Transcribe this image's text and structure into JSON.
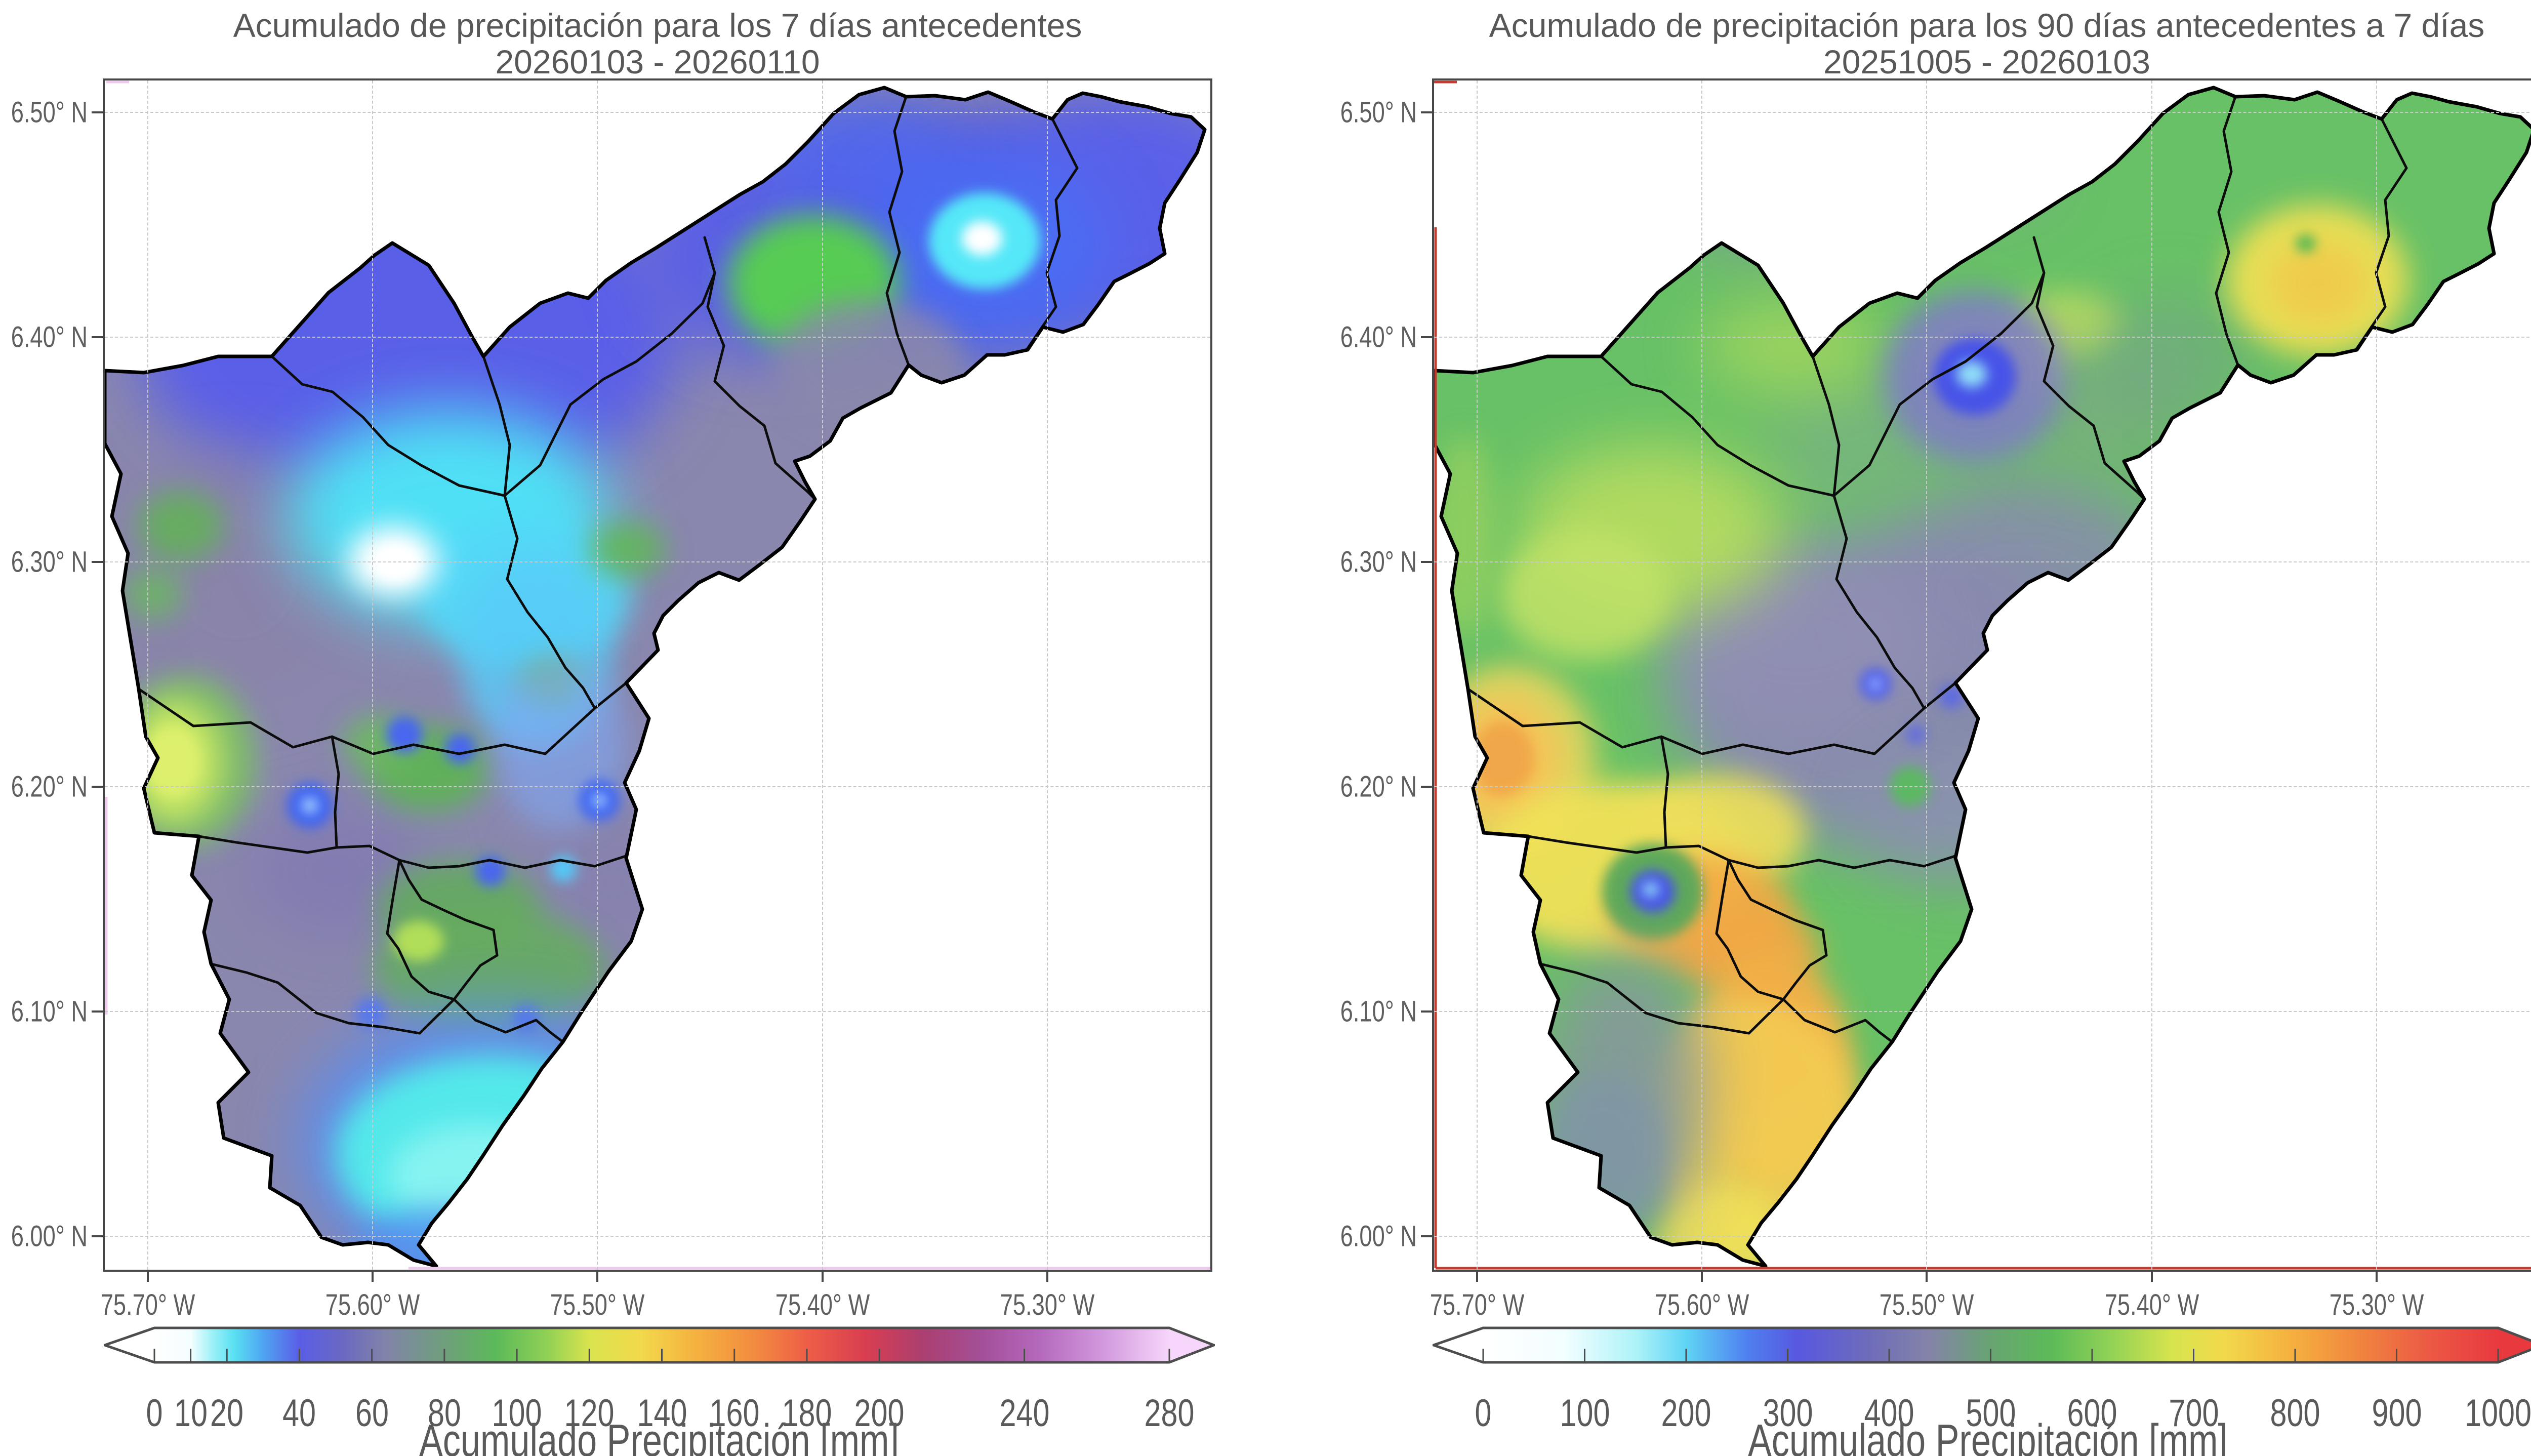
{
  "figure": {
    "background": "#ffffff",
    "type": "precipitation-accumulation-maps"
  },
  "maps": [
    {
      "title_line1": "Acumulado de precipitación para los 7 días antecedentes",
      "title_line2": "20260103 - 20260110",
      "x_ticks": [
        "75.70° W",
        "75.60° W",
        "75.50° W",
        "75.40° W",
        "75.30° W"
      ],
      "y_ticks": [
        "6.50° N",
        "6.40° N",
        "6.30° N",
        "6.20° N",
        "6.10° N",
        "6.00° N"
      ],
      "colorbar": {
        "label": "Acumulado Precipitación [mm]",
        "min": 0,
        "max": 280,
        "tick_labels": [
          "0",
          "10",
          "20",
          "40",
          "60",
          "80",
          "100",
          "120",
          "140",
          "160",
          "180",
          "200",
          "240",
          "280"
        ],
        "tick_values": [
          0,
          10,
          20,
          40,
          60,
          80,
          100,
          120,
          140,
          160,
          180,
          200,
          240,
          280
        ],
        "gradient_stops": [
          {
            "value": 0,
            "color": "#ffffff"
          },
          {
            "value": 10,
            "color": "#f4feff"
          },
          {
            "value": 16,
            "color": "#9df1f7"
          },
          {
            "value": 22,
            "color": "#59e0f2"
          },
          {
            "value": 30,
            "color": "#4fa4f2"
          },
          {
            "value": 40,
            "color": "#5a5ee6"
          },
          {
            "value": 52,
            "color": "#6b68c2"
          },
          {
            "value": 64,
            "color": "#8184a8"
          },
          {
            "value": 80,
            "color": "#6f9f7c"
          },
          {
            "value": 94,
            "color": "#5cb95a"
          },
          {
            "value": 108,
            "color": "#8ed055"
          },
          {
            "value": 120,
            "color": "#d9e44e"
          },
          {
            "value": 134,
            "color": "#f2d94b"
          },
          {
            "value": 150,
            "color": "#f5b040"
          },
          {
            "value": 166,
            "color": "#f28a40"
          },
          {
            "value": 180,
            "color": "#ee5e47"
          },
          {
            "value": 196,
            "color": "#d93e50"
          },
          {
            "value": 212,
            "color": "#ab3f70"
          },
          {
            "value": 228,
            "color": "#a44f98"
          },
          {
            "value": 244,
            "color": "#b468bc"
          },
          {
            "value": 262,
            "color": "#d29ade"
          },
          {
            "value": 280,
            "color": "#f6d6fa"
          }
        ]
      }
    },
    {
      "title_line1": "Acumulado de precipitación para los 90 días antecedentes a 7 días",
      "title_line2": "20251005 - 20260103",
      "x_ticks": [
        "75.70° W",
        "75.60° W",
        "75.50° W",
        "75.40° W",
        "75.30° W"
      ],
      "y_ticks": [
        "6.50° N",
        "6.40° N",
        "6.30° N",
        "6.20° N",
        "6.10° N",
        "6.00° N"
      ],
      "colorbar": {
        "label": "Acumulado Precipitación [mm]",
        "min": 0,
        "max": 1000,
        "tick_labels": [
          "0",
          "100",
          "200",
          "300",
          "400",
          "500",
          "600",
          "700",
          "800",
          "900",
          "1000"
        ],
        "tick_values": [
          0,
          100,
          200,
          300,
          400,
          500,
          600,
          700,
          800,
          900,
          1000
        ],
        "gradient_stops": [
          {
            "value": 0,
            "color": "#ffffff"
          },
          {
            "value": 80,
            "color": "#f2feff"
          },
          {
            "value": 150,
            "color": "#aef3f8"
          },
          {
            "value": 200,
            "color": "#5fd4f5"
          },
          {
            "value": 260,
            "color": "#4f80f0"
          },
          {
            "value": 310,
            "color": "#5858e0"
          },
          {
            "value": 380,
            "color": "#6e6cba"
          },
          {
            "value": 440,
            "color": "#8484a8"
          },
          {
            "value": 500,
            "color": "#68a472"
          },
          {
            "value": 560,
            "color": "#5cbb58"
          },
          {
            "value": 620,
            "color": "#93d255"
          },
          {
            "value": 680,
            "color": "#d8e44e"
          },
          {
            "value": 730,
            "color": "#f2d94b"
          },
          {
            "value": 800,
            "color": "#f5ae3f"
          },
          {
            "value": 870,
            "color": "#f0813f"
          },
          {
            "value": 930,
            "color": "#ec5a45"
          },
          {
            "value": 1000,
            "color": "#e8393f"
          }
        ]
      }
    }
  ],
  "palette": {
    "municipal_boundary": "#000000",
    "gridline": "#c9c9c9",
    "axis_spine": "#474747",
    "tick_text": "#5f5f5f",
    "title_text": "#585858",
    "extent_frame_map1": "#efc9ee",
    "extent_frame_map2": "#c23b2e"
  },
  "chart_data": {
    "type": "heatmap",
    "subtype": "geographic precipitation interpolation, 2 panels",
    "panels": [
      {
        "title": "Acumulado de precipitación para los 7 días antecedentes",
        "period": "20260103 - 20260110",
        "colorbar_range_mm": [
          0,
          280
        ]
      },
      {
        "title": "Acumulado de precipitación para los 90 días antecedentes a 7 días",
        "period": "20251005 - 20260103",
        "colorbar_range_mm": [
          0,
          1000
        ]
      }
    ],
    "lon_range_deg_w": [
      75.72,
      75.23
    ],
    "lat_range_deg_n": [
      5.985,
      6.514
    ]
  }
}
